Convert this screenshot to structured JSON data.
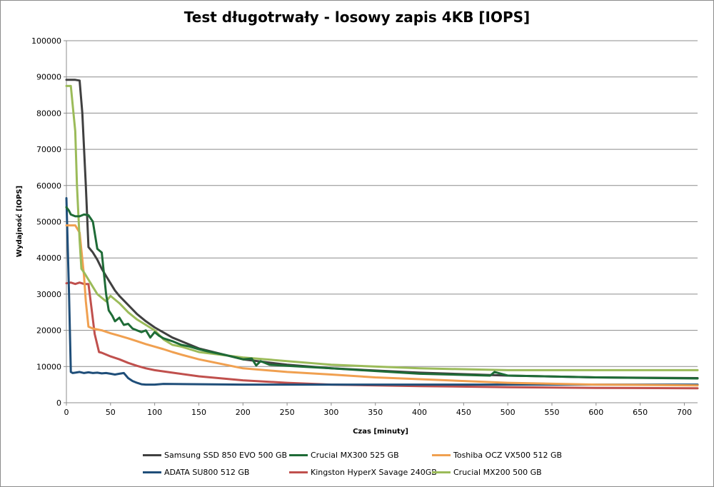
{
  "chart_data": {
    "type": "line",
    "title": "Test długotrwały - losowy zapis 4KB [IOPS]",
    "xlabel": "Czas [minuty]",
    "ylabel": "Wydajność [IOPS]",
    "xlim": [
      0,
      715
    ],
    "ylim": [
      0,
      100000
    ],
    "xticks": [
      0,
      50,
      100,
      150,
      200,
      250,
      300,
      350,
      400,
      450,
      500,
      550,
      600,
      650,
      700
    ],
    "yticks": [
      0,
      10000,
      20000,
      30000,
      40000,
      50000,
      60000,
      70000,
      80000,
      90000,
      100000
    ],
    "grid": true,
    "legend_position": "bottom",
    "series": [
      {
        "name": "Samsung SSD 850 EVO 500 GB",
        "color": "#404040",
        "x": [
          0,
          10,
          15,
          18,
          22,
          25,
          30,
          35,
          40,
          45,
          50,
          55,
          60,
          70,
          80,
          90,
          100,
          120,
          150,
          200,
          250,
          300,
          400,
          500,
          600,
          715
        ],
        "y": [
          89200,
          89200,
          89000,
          80000,
          60000,
          43000,
          41500,
          39500,
          37000,
          35000,
          33000,
          31000,
          29500,
          27000,
          24500,
          22500,
          20800,
          18000,
          15000,
          12000,
          10500,
          9500,
          8300,
          7500,
          7000,
          6800
        ]
      },
      {
        "name": "Crucial MX300 525 GB",
        "color": "#1e6b36",
        "x": [
          0,
          3,
          5,
          10,
          15,
          20,
          25,
          30,
          35,
          40,
          45,
          48,
          52,
          55,
          60,
          65,
          70,
          75,
          80,
          85,
          90,
          95,
          100,
          105,
          110,
          120,
          130,
          140,
          150,
          160,
          180,
          200,
          210,
          215,
          220,
          230,
          250,
          300,
          400,
          480,
          485,
          500,
          600,
          715
        ],
        "y": [
          54000,
          53000,
          52000,
          51500,
          51500,
          52000,
          51800,
          50000,
          42500,
          41500,
          30000,
          25500,
          24000,
          22500,
          23500,
          21500,
          21800,
          20500,
          20000,
          19500,
          20000,
          18000,
          19500,
          18500,
          17800,
          17000,
          16000,
          15500,
          14800,
          14200,
          13200,
          12000,
          12200,
          10300,
          11500,
          10500,
          10200,
          9500,
          8000,
          7500,
          8500,
          7500,
          7000,
          6700
        ]
      },
      {
        "name": "Toshiba OCZ VX500 512 GB",
        "color": "#f0a050",
        "x": [
          0,
          10,
          15,
          20,
          22,
          25,
          30,
          40,
          50,
          60,
          70,
          80,
          90,
          100,
          110,
          120,
          130,
          150,
          200,
          250,
          300,
          350,
          400,
          500,
          600,
          715
        ],
        "y": [
          49000,
          49000,
          47000,
          35000,
          28000,
          21000,
          20500,
          20000,
          19200,
          18500,
          17800,
          17000,
          16200,
          15500,
          14800,
          14000,
          13300,
          12000,
          9500,
          8500,
          7800,
          7000,
          6500,
          5500,
          5000,
          4800
        ]
      },
      {
        "name": "ADATA SU800 512 GB",
        "color": "#1f4e79",
        "x": [
          0,
          3,
          5,
          7,
          10,
          15,
          20,
          25,
          30,
          35,
          40,
          45,
          50,
          55,
          60,
          65,
          70,
          75,
          80,
          85,
          90,
          100,
          110,
          200,
          300,
          400,
          500,
          600,
          715
        ],
        "y": [
          56500,
          30000,
          8500,
          8200,
          8300,
          8500,
          8200,
          8400,
          8200,
          8300,
          8100,
          8200,
          8000,
          7800,
          8000,
          8200,
          6800,
          6000,
          5500,
          5100,
          5000,
          5000,
          5200,
          5000,
          5000,
          5000,
          5000,
          5000,
          5000
        ]
      },
      {
        "name": "Kingston HyperX Savage 240GB",
        "color": "#c0504d",
        "x": [
          0,
          5,
          10,
          15,
          20,
          25,
          28,
          32,
          37,
          40,
          50,
          60,
          70,
          80,
          90,
          100,
          120,
          150,
          200,
          250,
          300,
          400,
          500,
          600,
          715
        ],
        "y": [
          33000,
          33200,
          32800,
          33200,
          32800,
          32800,
          27000,
          19000,
          14000,
          13800,
          12800,
          12000,
          11000,
          10200,
          9500,
          9000,
          8300,
          7300,
          6200,
          5500,
          5000,
          4600,
          4300,
          4100,
          4000
        ]
      },
      {
        "name": "Crucial MX200 500 GB",
        "color": "#9bbb59",
        "x": [
          0,
          5,
          8,
          10,
          12,
          15,
          17,
          20,
          25,
          30,
          35,
          40,
          45,
          50,
          55,
          60,
          70,
          80,
          90,
          100,
          110,
          120,
          130,
          150,
          200,
          250,
          300,
          400,
          500,
          600,
          715
        ],
        "y": [
          87500,
          87500,
          80000,
          75000,
          60000,
          45000,
          37000,
          36000,
          34000,
          32000,
          30000,
          29000,
          28000,
          29500,
          28500,
          27500,
          25000,
          23000,
          21500,
          20000,
          17500,
          16000,
          15500,
          14000,
          12500,
          11500,
          10500,
          9500,
          9000,
          9000,
          9000
        ]
      }
    ]
  }
}
